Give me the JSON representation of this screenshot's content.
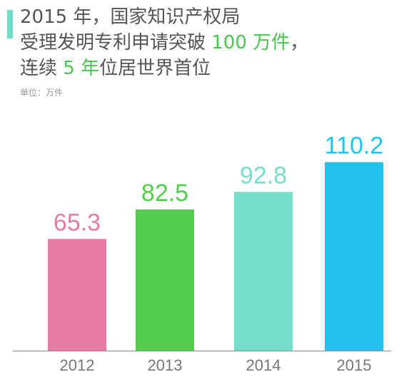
{
  "title": {
    "line1": "2015 年，国家知识产权局",
    "line2_pre": "受理发明专利申请突破 ",
    "line2_hl": "100 万件",
    "line2_post": "，",
    "line3_pre": "连续 ",
    "line3_hl": "5 年",
    "line3_post": "位居世界首位"
  },
  "unit_label": "单位：万件",
  "colors": {
    "accent_bar": "#6fdcc6",
    "highlight": "#48c74f",
    "bars": [
      "#e67ba3",
      "#54cc4c",
      "#76dfca",
      "#23c2ec"
    ],
    "axis": "#8a8a8a"
  },
  "chart_data": {
    "type": "bar",
    "categories": [
      "2012",
      "2013",
      "2014",
      "2015"
    ],
    "values": [
      65.3,
      82.5,
      92.8,
      110.2
    ],
    "value_labels": [
      "65.3",
      "82.5",
      "92.8",
      "110.2"
    ],
    "ylabel": "单位：万件",
    "grid": false
  }
}
